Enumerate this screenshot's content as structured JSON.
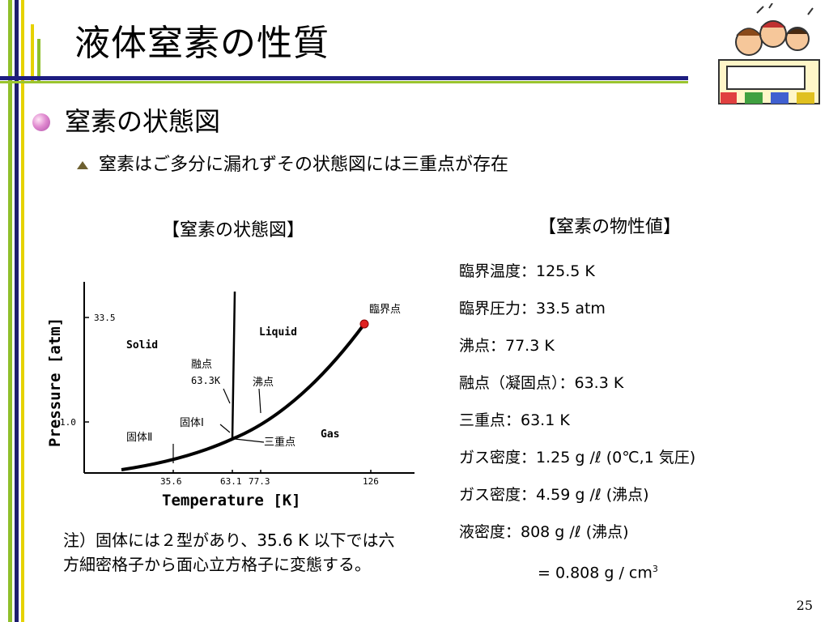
{
  "slide": {
    "title": "液体窒素の性質",
    "heading": "窒素の状態図",
    "subheading": "窒素はご多分に漏れずその状態図には三重点が存在",
    "diagram_caption": "【窒素の状態図】",
    "properties_caption": "【窒素の物性値】",
    "page_number": "25"
  },
  "properties": [
    "臨界温度：125.5 K",
    "臨界圧力：33.5 atm",
    "沸点：77.3 K",
    "融点（凝固点）：63.3 K",
    "三重点：63.1 K",
    "ガス密度：1.25 g /ℓ (0℃,1 気圧)",
    "ガス密度：4.59 g /ℓ (沸点)",
    "液密度：808 g /ℓ (沸点)",
    "= 0.808 g / cm"
  ],
  "properties_sup": "3",
  "note": "注）固体には２型があり、35.6 K 以下では六方細密格子から面心立方格子に変態する。",
  "chart_data": {
    "type": "line",
    "title": "",
    "xlabel": "Temperature [K]",
    "ylabel": "Pressure [atm]",
    "x_ticks": [
      "35.6",
      "63.1",
      "77.3",
      "126"
    ],
    "y_ticks": [
      "33.5",
      "1.0"
    ],
    "region_labels": [
      "Solid",
      "Liquid",
      "Gas"
    ],
    "annotations": [
      "臨界点",
      "融点",
      "63.3K",
      "沸点",
      "固体Ⅰ",
      "固体Ⅱ",
      "三重点"
    ],
    "series": [
      {
        "values": [
          [
            35.6,
            0.05
          ],
          [
            63.1,
            1.0
          ],
          [
            77.3,
            2.5
          ],
          [
            126,
            33.5
          ]
        ]
      },
      {
        "values": [
          [
            63.1,
            1.0
          ],
          [
            63.3,
            33.5
          ]
        ]
      }
    ],
    "critical_point": [
      126,
      33.5
    ],
    "critical_point_color": "#e02020"
  },
  "colors": {
    "accent_bar_green": "#8fbf2a",
    "accent_bar_navy": "#1d1d6e",
    "accent_bar_yellow": "#e6d200",
    "rule_navy": "#1d1d80",
    "rule_green": "#9ac42e",
    "critical_point": "#e02020"
  }
}
